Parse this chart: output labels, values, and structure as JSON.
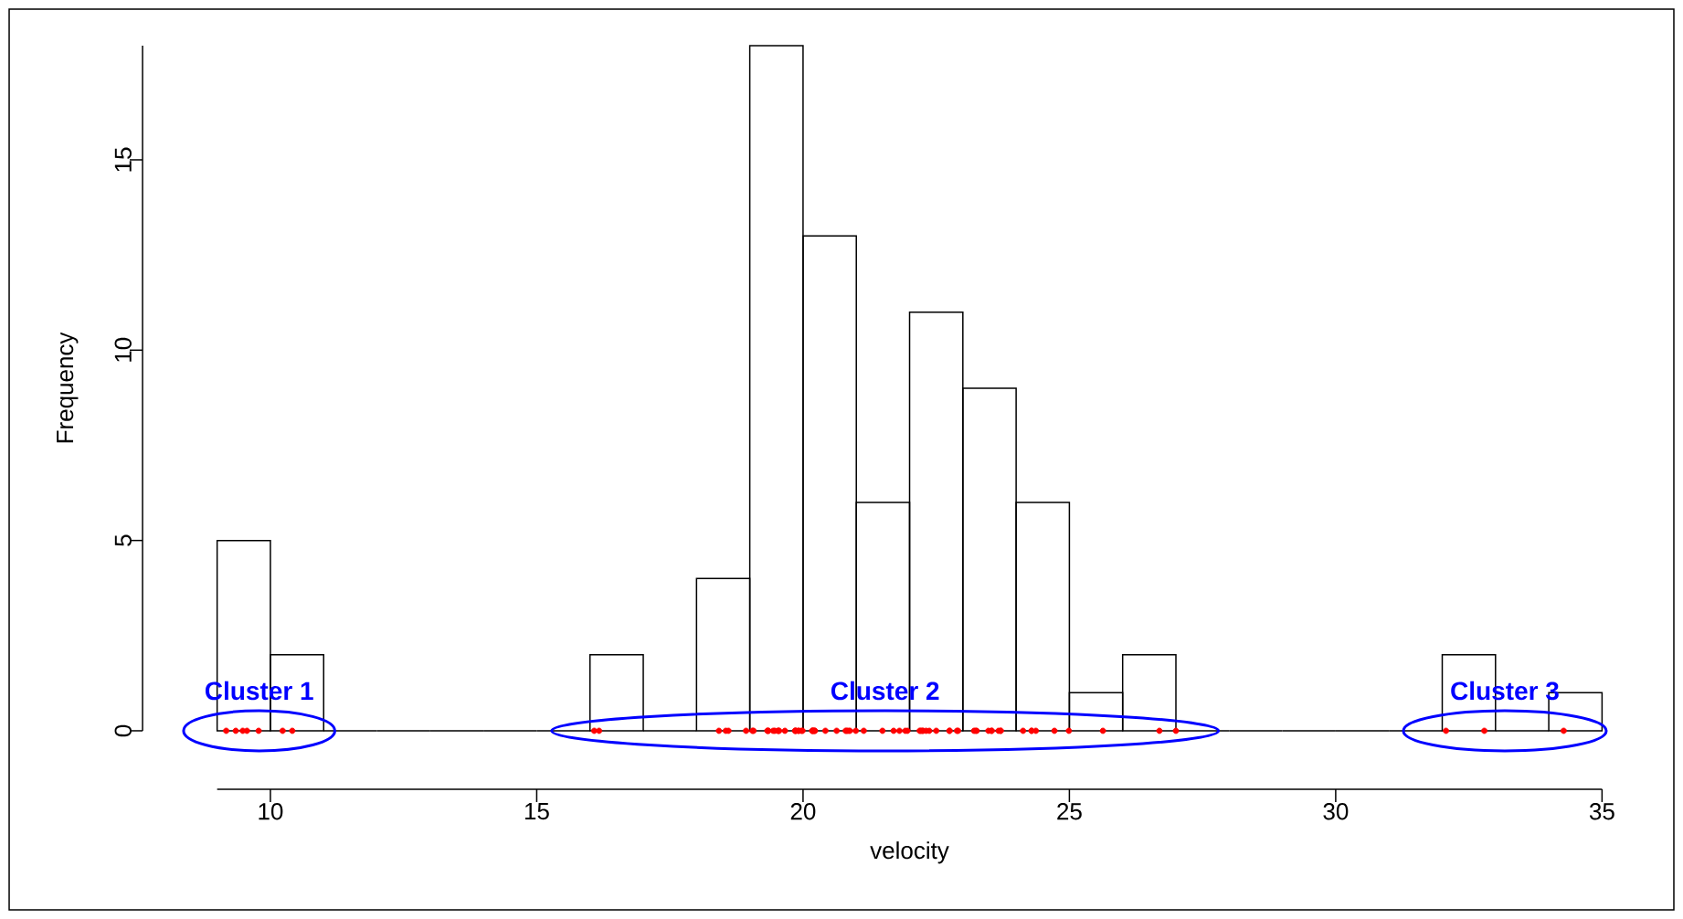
{
  "chart_data": {
    "type": "histogram",
    "xlabel": "velocity",
    "ylabel": "Frequency",
    "bins": [
      9,
      10,
      11,
      12,
      13,
      14,
      15,
      16,
      17,
      18,
      19,
      20,
      21,
      22,
      23,
      24,
      25,
      26,
      27,
      28,
      29,
      30,
      31,
      32,
      33,
      34,
      35
    ],
    "values": [
      5,
      2,
      0,
      0,
      0,
      0,
      0,
      2,
      0,
      4,
      18,
      13,
      6,
      11,
      9,
      6,
      1,
      2,
      0,
      0,
      0,
      0,
      0,
      2,
      0,
      1
    ],
    "color": "#000000",
    "series": [
      {
        "type": "scatter",
        "color": "#ff0000",
        "x": [
          9.17,
          9.35,
          9.48,
          9.56,
          9.78,
          10.23,
          10.41
        ],
        "values": [
          0,
          0,
          0,
          0,
          0,
          0,
          0
        ]
      },
      {
        "type": "scatter",
        "color": "#ff0000",
        "x": [
          16.08,
          16.17,
          18.42,
          18.55,
          18.6,
          18.93,
          19.05,
          19.07,
          19.33,
          19.34,
          19.35,
          19.44,
          19.47,
          19.53,
          19.54,
          19.55,
          19.66,
          19.85,
          19.86,
          19.86,
          19.91,
          19.92,
          19.97,
          19.99,
          20.17,
          20.18,
          20.18,
          20.2,
          20.22,
          20.22,
          20.42,
          20.63,
          20.8,
          20.82,
          20.85,
          20.88,
          20.99,
          21.14,
          21.49,
          21.7,
          21.81,
          21.92,
          21.96,
          22.19,
          22.21,
          22.24,
          22.25,
          22.31,
          22.37,
          22.5,
          22.75,
          22.75,
          22.89,
          22.91,
          23.21,
          23.24,
          23.26,
          23.48,
          23.54,
          23.54,
          23.67,
          23.71,
          23.71,
          24.13,
          24.29,
          24.29,
          24.37,
          24.72,
          24.99,
          25.63,
          26.69,
          27.0
        ],
        "values": [
          0,
          0,
          0,
          0,
          0,
          0,
          0,
          0,
          0,
          0,
          0,
          0,
          0,
          0,
          0,
          0,
          0,
          0,
          0,
          0,
          0,
          0,
          0,
          0,
          0,
          0,
          0,
          0,
          0,
          0,
          0,
          0,
          0,
          0,
          0,
          0,
          0,
          0,
          0,
          0,
          0,
          0,
          0,
          0,
          0,
          0,
          0,
          0,
          0,
          0,
          0,
          0,
          0,
          0,
          0,
          0,
          0,
          0,
          0,
          0,
          0,
          0,
          0,
          0,
          0,
          0,
          0,
          0,
          0,
          0,
          0,
          0
        ]
      },
      {
        "type": "scatter",
        "color": "#ff0000",
        "x": [
          32.07,
          32.79,
          34.28
        ],
        "values": [
          0,
          0,
          0
        ]
      }
    ],
    "annotations": [
      "Cluster 1",
      "Cluster 2",
      "Cluster 3"
    ],
    "xlim": [
      9,
      35
    ],
    "ylim": [
      0,
      18
    ],
    "xticks": [
      10,
      15,
      20,
      25,
      30,
      35
    ],
    "yticks": [
      0,
      5,
      10,
      15
    ],
    "grid": false
  }
}
